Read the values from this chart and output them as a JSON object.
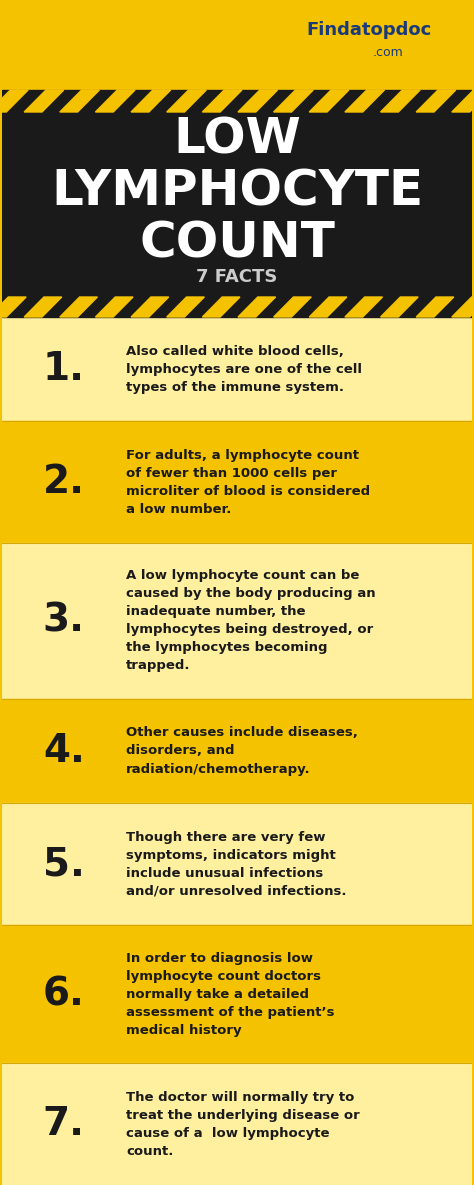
{
  "title_line1": "LOW",
  "title_line2": "LYMPHOCYTE",
  "title_line3": "COUNT",
  "subtitle": "7 FACTS",
  "header_bg": "#F5C200",
  "title_bg": "#1a1a1a",
  "facts_bg_light": "#FFF0A0",
  "facts_bg_yellow": "#F5C200",
  "text_color": "#1a1a1a",
  "white": "#FFFFFF",
  "facts": [
    {
      "num": "1.",
      "text": "Also called white blood cells,\nlymphocytes are one of the cell\ntypes of the immune system.",
      "bg": "#FFF0A0"
    },
    {
      "num": "2.",
      "text": "For adults, a lymphocyte count\nof fewer than 1000 cells per\nmicroliter of blood is considered\na low number.",
      "bg": "#F5C200"
    },
    {
      "num": "3.",
      "text": "A low lymphocyte count can be\ncaused by the body producing an\ninadequate number, the\nlymphocytes being destroyed, or\nthe lymphocytes becoming\ntrapped.",
      "bg": "#FFF0A0"
    },
    {
      "num": "4.",
      "text": "Other causes include diseases,\ndisorders, and\nradiation/chemotherapy.",
      "bg": "#F5C200"
    },
    {
      "num": "5.",
      "text": "Though there are very few\nsymptoms, indicators might\ninclude unusual infections\nand/or unresolved infections.",
      "bg": "#FFF0A0"
    },
    {
      "num": "6.",
      "text": "In order to diagnosis low\nlymphocyte count doctors\nnormally take a detailed\nassessment of the patient’s\nmedical history",
      "bg": "#F5C200"
    },
    {
      "num": "7.",
      "text": "The doctor will normally try to\ntreat the underlying disease or\ncause of a  low lymphocyte\ncount.",
      "bg": "#FFF0A0"
    }
  ]
}
